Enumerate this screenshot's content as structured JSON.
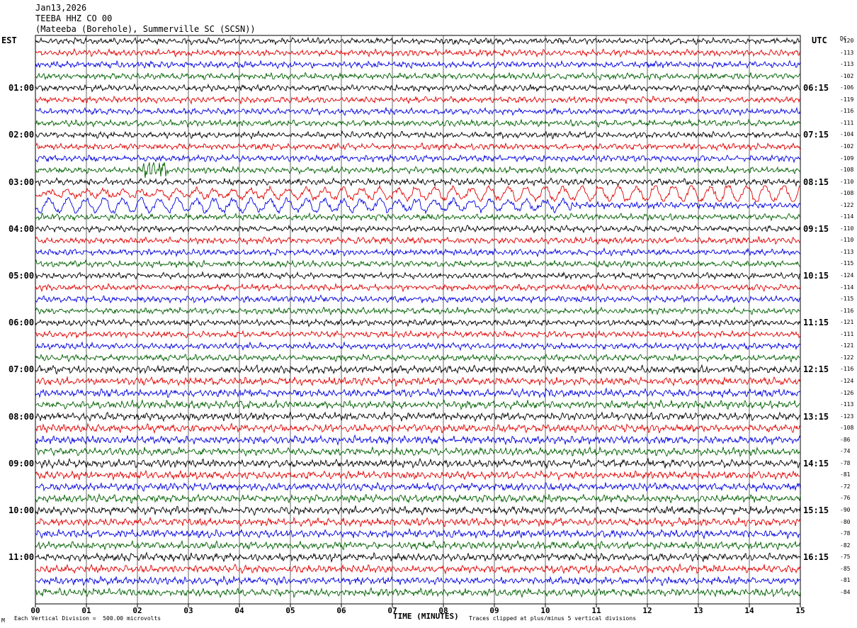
{
  "header": {
    "date": "Jan13,2026",
    "station": "TEEBA HHZ CO 00",
    "location": "(Mateeba (Borehole), Summerville SC (SCSN))"
  },
  "left_axis_title": "EST",
  "right_axis_title": "UTC",
  "dc_title": "DC",
  "footer": {
    "scale": "Each Vertical Division =  500.00 microvolts",
    "clip": "Traces clipped at plus/minus 5 vertical divisions",
    "mark": "M"
  },
  "colors": {
    "black": "#000000",
    "red": "#e00000",
    "blue": "#0000e0",
    "green": "#006000",
    "grid": "#000000"
  },
  "chart_data": {
    "type": "line",
    "title": "",
    "xlabel": "TIME (MINUTES)",
    "ylabel": "",
    "xlim": [
      0,
      15
    ],
    "x_ticks": [
      "00",
      "01",
      "02",
      "03",
      "04",
      "05",
      "06",
      "07",
      "08",
      "09",
      "10",
      "11",
      "12",
      "13",
      "14",
      "15"
    ],
    "trace_minutes": 15,
    "trace_count": 48,
    "trace_colors": [
      "black",
      "red",
      "blue",
      "green"
    ],
    "est_hour_labels": [
      "01:00",
      "02:00",
      "03:00",
      "04:00",
      "05:00",
      "06:00",
      "07:00",
      "08:00",
      "09:00",
      "10:00",
      "11:00"
    ],
    "utc_hour_labels": [
      "06:15",
      "07:15",
      "08:15",
      "09:15",
      "10:15",
      "11:15",
      "12:15",
      "13:15",
      "14:15",
      "15:15",
      "16:15"
    ],
    "dc_offsets": [
      -120,
      -113,
      -113,
      -102,
      -106,
      -119,
      -116,
      -111,
      -104,
      -102,
      -109,
      -108,
      -110,
      -108,
      -122,
      -114,
      -110,
      -110,
      -113,
      -115,
      -124,
      -114,
      -115,
      -116,
      -121,
      -111,
      -121,
      -122,
      -116,
      -124,
      -126,
      -113,
      -123,
      -108,
      -86,
      -74,
      -78,
      -81,
      -72,
      -76,
      -90,
      -80,
      -78,
      -82,
      -75,
      -85,
      -81,
      -84
    ],
    "event_traces": [
      {
        "trace": 11,
        "start_min": 2.1,
        "end_min": 2.6,
        "note": "burst"
      },
      {
        "trace": 13,
        "start_min": 0,
        "end_min": 15,
        "note": "long-period wave"
      },
      {
        "trace": 14,
        "start_min": 0,
        "end_min": 10.5,
        "note": "long-period wave"
      }
    ]
  }
}
